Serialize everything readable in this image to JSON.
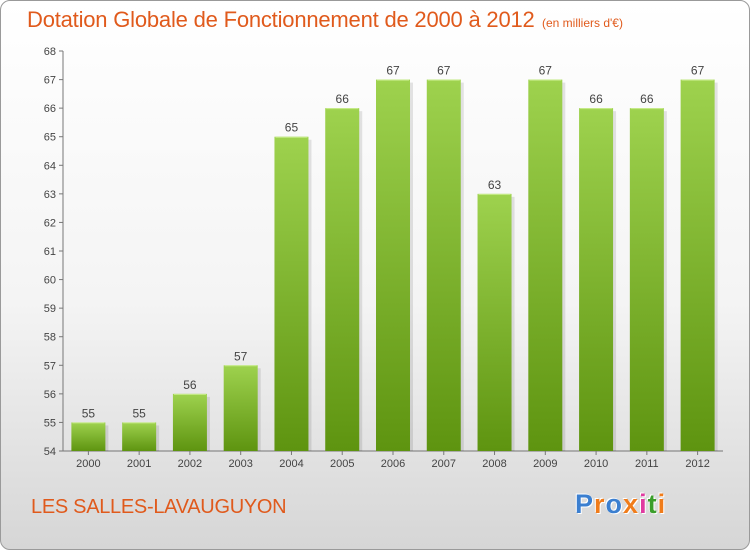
{
  "header": {
    "title": "Dotation Globale de Fonctionnement de 2000 à 2012",
    "unit": "(en milliers d'€)"
  },
  "footer": {
    "place": "LES SALLES-LAVAUGUYON",
    "logo_text": "Proxiti"
  },
  "colors": {
    "title": "#e05a1c",
    "bar_top": "#9ed24e",
    "bar_bottom": "#5e9410",
    "logo_letters": [
      "#3b7fd0",
      "#f07c1a",
      "#3b7fd0",
      "#f07c1a",
      "#e03aa0",
      "#3b9e2a",
      "#f07c1a"
    ]
  },
  "chart_data": {
    "type": "bar",
    "title": "Dotation Globale de Fonctionnement de 2000 à 2012",
    "subtitle": "(en milliers d'€)",
    "categories": [
      "2000",
      "2001",
      "2002",
      "2003",
      "2004",
      "2005",
      "2006",
      "2007",
      "2008",
      "2009",
      "2010",
      "2011",
      "2012"
    ],
    "values": [
      55,
      55,
      56,
      57,
      65,
      66,
      67,
      67,
      63,
      67,
      66,
      66,
      67
    ],
    "ylim": [
      54,
      68
    ],
    "yticks": [
      54,
      55,
      56,
      57,
      58,
      59,
      60,
      61,
      62,
      63,
      64,
      65,
      66,
      67,
      68
    ],
    "grid": false,
    "data_labels": true
  }
}
